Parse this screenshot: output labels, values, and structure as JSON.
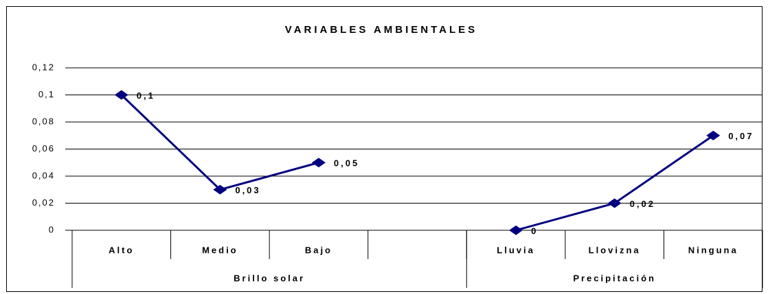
{
  "chart_data": {
    "type": "line",
    "title": "VARIABLES AMBIENTALES",
    "categories": [
      "Alto",
      "Medio",
      "Bajo",
      null,
      "Lluvia",
      "Llovizna",
      "Ninguna"
    ],
    "category_groups": [
      {
        "label": "Brillo solar",
        "size": 4
      },
      {
        "label": "Precipitación",
        "size": 3
      }
    ],
    "series": [
      {
        "color": "#000080",
        "values": [
          0.1,
          0.03,
          0.05,
          null,
          0,
          0.02,
          0.07
        ],
        "value_labels": [
          "0,1",
          "0,03",
          "0,05",
          null,
          "0",
          "0,02",
          "0,07"
        ]
      }
    ],
    "ylim": [
      0,
      0.12
    ],
    "yticks": [
      0,
      {
        "value": 0.02,
        "label": "0,02"
      },
      {
        "value": 0.04,
        "label": "0,04"
      },
      {
        "value": 0.06,
        "label": "0,06"
      },
      {
        "value": 0.08,
        "label": "0,08"
      },
      {
        "value": 0.1,
        "label": "0,1"
      },
      {
        "value": 0.12,
        "label": "0,12"
      }
    ],
    "grid": true
  }
}
